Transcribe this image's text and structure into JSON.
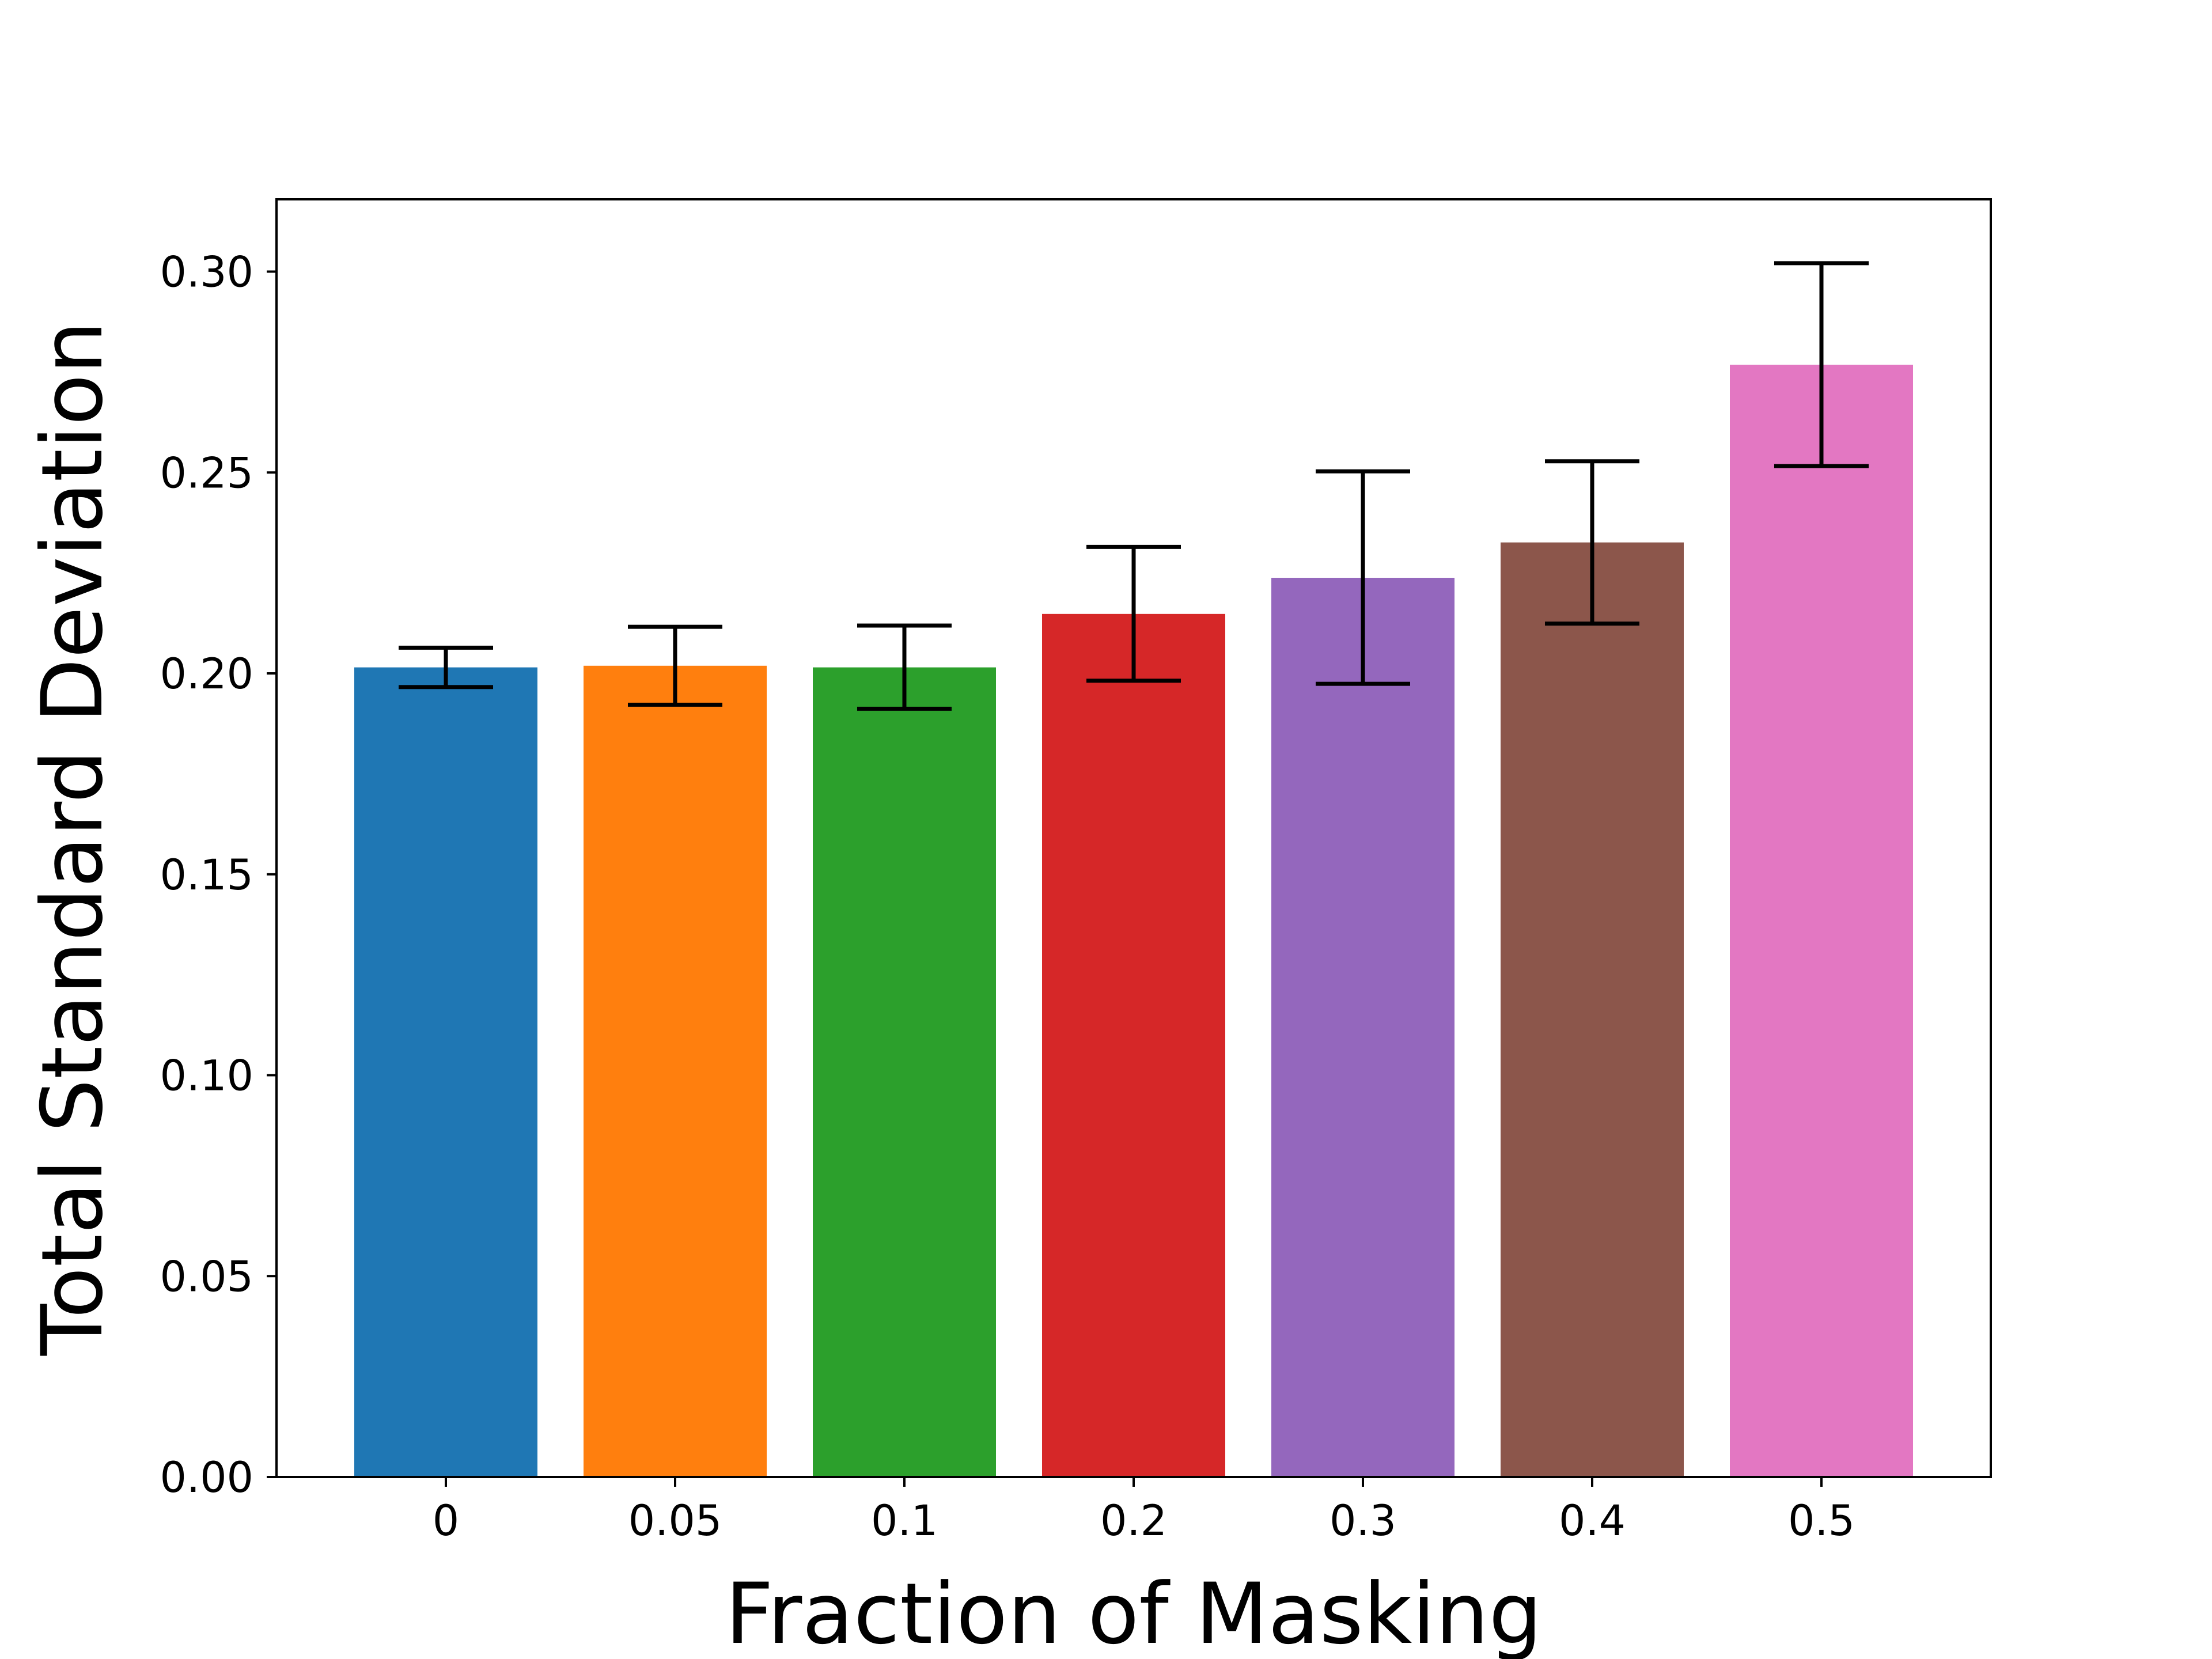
{
  "chart_data": {
    "type": "bar",
    "title": "",
    "xlabel": "Fraction of Masking",
    "ylabel": "Total Standard Deviation",
    "categories": [
      "0",
      "0.05",
      "0.1",
      "0.2",
      "0.3",
      "0.4",
      "0.5"
    ],
    "values": [
      0.2015,
      0.2019,
      0.2015,
      0.2148,
      0.2238,
      0.2326,
      0.2768
    ],
    "error_low": [
      0.1966,
      0.1922,
      0.1912,
      0.1982,
      0.1974,
      0.2124,
      0.2516
    ],
    "error_high": [
      0.2064,
      0.2116,
      0.2119,
      0.2315,
      0.2503,
      0.2528,
      0.3021
    ],
    "ylim": [
      0,
      0.318
    ],
    "yticks": [
      "0.00",
      "0.05",
      "0.10",
      "0.15",
      "0.20",
      "0.25",
      "0.30"
    ],
    "grid": false,
    "legend": "none",
    "colors": [
      "#1f77b4",
      "#ff7f0e",
      "#2ca02c",
      "#d62728",
      "#9467bd",
      "#8c564b",
      "#e377c2"
    ]
  }
}
